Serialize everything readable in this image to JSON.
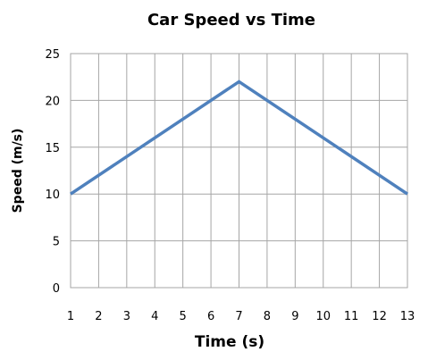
{
  "chart_data": {
    "type": "line",
    "title": "Car Speed vs Time",
    "xlabel": "Time (s)",
    "ylabel": "Speed (m/s)",
    "x": [
      1,
      7,
      13
    ],
    "series": [
      {
        "values": [
          10,
          22,
          10
        ]
      }
    ],
    "xlim": [
      1,
      13
    ],
    "ylim": [
      0,
      25
    ],
    "x_ticks": [
      1,
      2,
      3,
      4,
      5,
      6,
      7,
      8,
      9,
      10,
      11,
      12,
      13
    ],
    "y_ticks": [
      0,
      5,
      10,
      15,
      20,
      25
    ],
    "grid": true,
    "legend": "none",
    "colors": {
      "series": "#4f81bd",
      "grid": "#a6a6a6"
    }
  }
}
